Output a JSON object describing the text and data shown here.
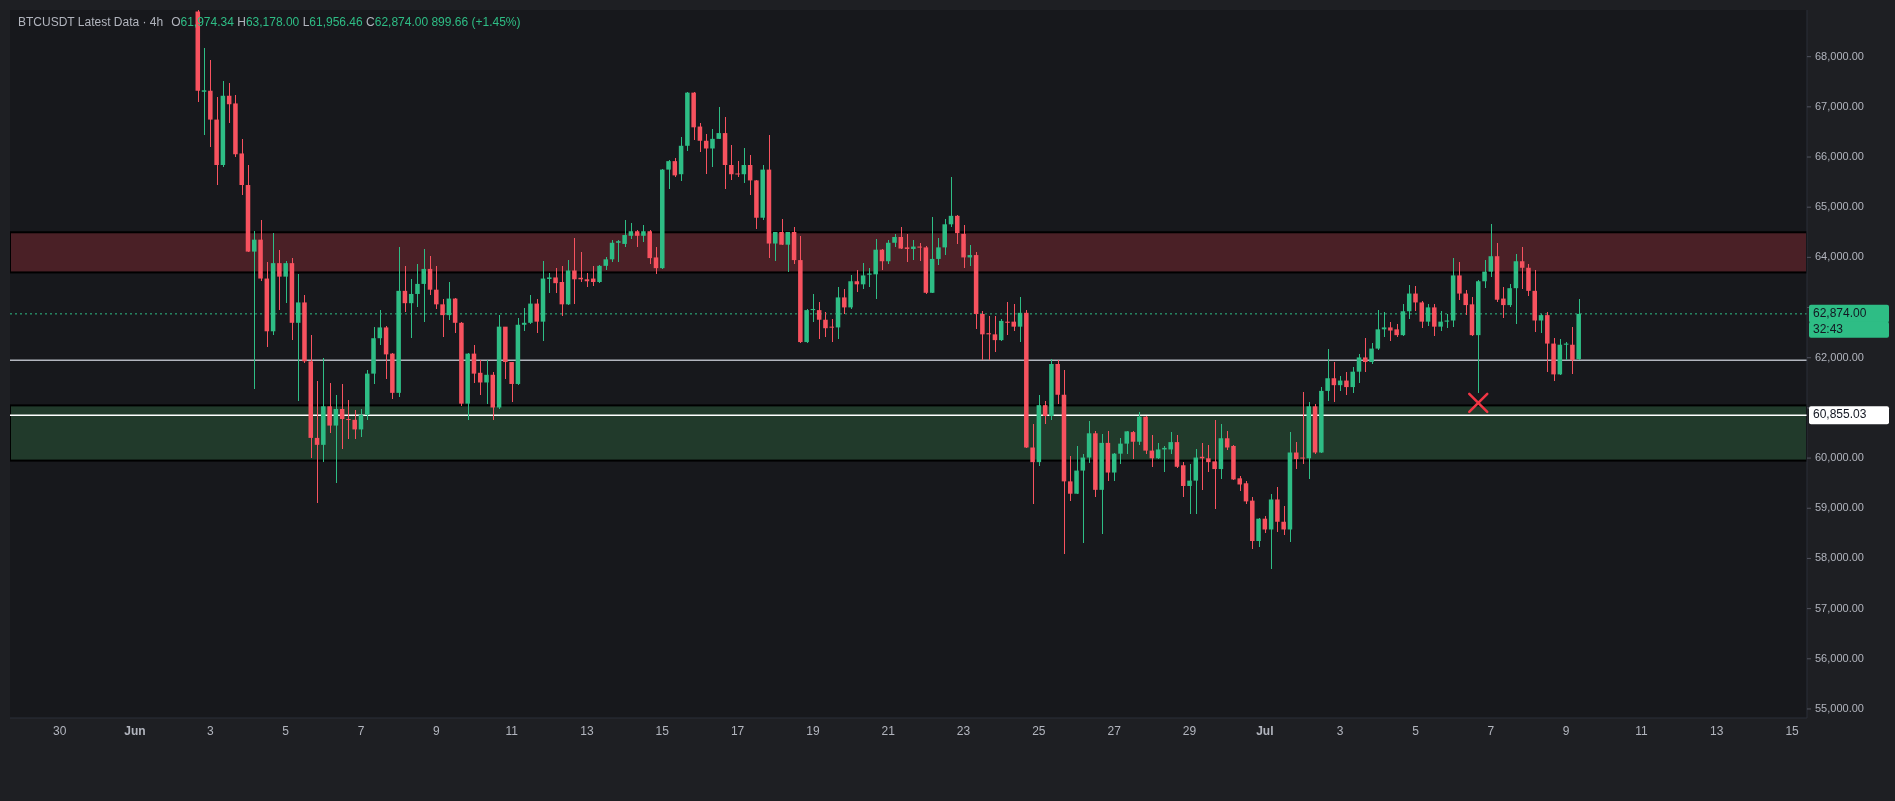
{
  "chart_data": {
    "type": "candlestick",
    "title": "BTCUSDT Latest Data · 4h",
    "subtitle": "O61,974.34 H63,178.00 L61,956.46 C62,874.00 899.66 (+1.45%)",
    "x": [
      "--06-02T16:00",
      "--06-02T20:00",
      "--06-03T00:00",
      "--06-03T04:00",
      "--06-03T08:00",
      "--06-03T12:00",
      "--06-03T16:00",
      "--06-03T20:00",
      "--06-04T00:00",
      "--06-04T04:00",
      "--06-04T08:00",
      "--06-04T12:00",
      "--06-04T16:00",
      "--06-04T20:00",
      "--06-05T00:00",
      "--06-05T04:00",
      "--06-05T08:00",
      "--06-05T12:00",
      "--06-05T16:00",
      "--06-05T20:00",
      "--06-06T00:00",
      "--06-06T04:00",
      "--06-06T08:00",
      "--06-06T12:00",
      "--06-06T16:00",
      "--06-06T20:00",
      "--06-07T00:00",
      "--06-07T04:00",
      "--06-07T08:00",
      "--06-07T12:00",
      "--06-07T16:00",
      "--06-07T20:00",
      "--06-08T00:00",
      "--06-08T04:00",
      "--06-08T08:00",
      "--06-08T12:00",
      "--06-08T16:00",
      "--06-08T20:00",
      "--06-09T00:00",
      "--06-09T04:00",
      "--06-09T08:00",
      "--06-09T12:00",
      "--06-09T16:00",
      "--06-09T20:00",
      "--06-10T00:00",
      "--06-10T04:00",
      "--06-10T08:00",
      "--06-10T12:00",
      "--06-10T16:00",
      "--06-10T20:00",
      "--06-11T00:00",
      "--06-11T04:00",
      "--06-11T08:00",
      "--06-11T12:00",
      "--06-11T16:00",
      "--06-11T20:00",
      "--06-12T00:00",
      "--06-12T04:00",
      "--06-12T08:00",
      "--06-12T12:00",
      "--06-12T16:00",
      "--06-12T20:00",
      "--06-13T00:00",
      "--06-13T04:00",
      "--06-13T08:00",
      "--06-13T12:00",
      "--06-13T16:00",
      "--06-13T20:00",
      "--06-14T00:00",
      "--06-14T04:00",
      "--06-14T08:00",
      "--06-14T12:00",
      "--06-14T16:00",
      "--06-14T20:00",
      "--06-15T00:00",
      "--06-15T04:00",
      "--06-15T08:00",
      "--06-15T12:00",
      "--06-15T16:00",
      "--06-15T20:00",
      "--06-16T00:00",
      "--06-16T04:00",
      "--06-16T08:00",
      "--06-16T12:00",
      "--06-16T16:00",
      "--06-16T20:00",
      "--06-17T00:00",
      "--06-17T04:00",
      "--06-17T08:00",
      "--06-17T12:00",
      "--06-17T16:00",
      "--06-17T20:00",
      "--06-18T00:00",
      "--06-18T04:00",
      "--06-18T08:00",
      "--06-18T12:00",
      "--06-18T16:00",
      "--06-18T20:00",
      "--06-19T00:00",
      "--06-19T04:00",
      "--06-19T08:00",
      "--06-19T12:00",
      "--06-19T16:00",
      "--06-19T20:00",
      "--06-20T00:00",
      "--06-20T04:00",
      "--06-20T08:00",
      "--06-20T12:00",
      "--06-20T16:00",
      "--06-20T20:00",
      "--06-21T00:00",
      "--06-21T04:00",
      "--06-21T08:00",
      "--06-21T12:00",
      "--06-21T16:00",
      "--06-21T20:00",
      "--06-22T00:00",
      "--06-22T04:00",
      "--06-22T08:00",
      "--06-22T12:00",
      "--06-22T16:00",
      "--06-22T20:00",
      "--06-23T00:00",
      "--06-23T04:00",
      "--06-23T08:00",
      "--06-23T12:00",
      "--06-23T16:00",
      "--06-23T20:00",
      "--06-24T00:00",
      "--06-24T04:00",
      "--06-24T08:00",
      "--06-24T12:00",
      "--06-24T16:00",
      "--06-24T20:00",
      "--06-25T00:00",
      "--06-25T04:00",
      "--06-25T08:00",
      "--06-25T12:00",
      "--06-25T16:00",
      "--06-25T20:00",
      "--06-26T00:00",
      "--06-26T04:00",
      "--06-26T08:00",
      "--06-26T12:00",
      "--06-26T16:00",
      "--06-26T20:00",
      "--06-27T00:00",
      "--06-27T04:00",
      "--06-27T08:00",
      "--06-27T12:00",
      "--06-27T16:00",
      "--06-27T20:00",
      "--06-28T00:00",
      "--06-28T04:00",
      "--06-28T08:00",
      "--06-28T12:00",
      "--06-28T16:00",
      "--06-28T20:00",
      "--06-29T00:00",
      "--06-29T04:00",
      "--06-29T08:00",
      "--06-29T12:00",
      "--06-29T16:00",
      "--06-29T20:00",
      "--06-30T00:00",
      "--06-30T04:00",
      "--06-30T08:00",
      "--06-30T12:00",
      "--06-30T16:00",
      "--06-30T20:00",
      "--07-01T00:00",
      "--07-01T04:00",
      "--07-01T08:00",
      "--07-01T12:00",
      "--07-01T16:00",
      "--07-01T20:00",
      "--07-02T00:00",
      "--07-02T04:00",
      "--07-02T08:00",
      "--07-02T12:00",
      "--07-02T16:00",
      "--07-02T20:00",
      "--07-03T00:00",
      "--07-03T04:00",
      "--07-03T08:00",
      "--07-03T12:00",
      "--07-03T16:00",
      "--07-03T20:00",
      "--07-04T00:00",
      "--07-04T04:00",
      "--07-04T08:00",
      "--07-04T12:00",
      "--07-04T16:00",
      "--07-04T20:00",
      "--07-05T00:00",
      "--07-05T04:00",
      "--07-05T08:00",
      "--07-05T12:00",
      "--07-05T16:00",
      "--07-05T20:00",
      "--07-06T00:00",
      "--07-06T04:00",
      "--07-06T08:00",
      "--07-06T12:00",
      "--07-06T16:00",
      "--07-06T20:00",
      "--07-07T00:00",
      "--07-07T04:00",
      "--07-07T08:00",
      "--07-07T12:00",
      "--07-07T16:00",
      "--07-07T20:00",
      "--07-08T00:00",
      "--07-08T04:00",
      "--07-08T08:00",
      "--07-08T12:00",
      "--07-08T16:00",
      "--07-08T20:00",
      "--07-09T00:00",
      "--07-09T04:00",
      "--07-09T08:00"
    ],
    "ohlc": [
      [
        68900,
        68950,
        67091,
        67321
      ],
      [
        67300,
        68165,
        66439,
        67330
      ],
      [
        67321,
        67934,
        66209,
        66746
      ],
      [
        66746,
        67206,
        65442,
        65841
      ],
      [
        65841,
        67513,
        65800,
        67221
      ],
      [
        67221,
        67474,
        66669,
        67052
      ],
      [
        67068,
        67244,
        66000,
        66055
      ],
      [
        66071,
        66362,
        65250,
        65442
      ],
      [
        65442,
        65841,
        64100,
        64115
      ],
      [
        64115,
        64521,
        61377,
        64353
      ],
      [
        64353,
        64751,
        63524,
        63578
      ],
      [
        63578,
        63908,
        62205,
        62527
      ],
      [
        62527,
        64483,
        62450,
        63885
      ],
      [
        63885,
        64138,
        62949,
        63616
      ],
      [
        63616,
        63923,
        63100,
        63885
      ],
      [
        63885,
        63985,
        62350,
        62696
      ],
      [
        62696,
        63678,
        61131,
        63102
      ],
      [
        63102,
        63256,
        61900,
        61929
      ],
      [
        61929,
        62450,
        59996,
        60402
      ],
      [
        60402,
        61530,
        59114,
        60264
      ],
      [
        60264,
        61990,
        59919,
        61032
      ],
      [
        61032,
        61492,
        60494,
        60648
      ],
      [
        60648,
        61262,
        59498,
        60978
      ],
      [
        60978,
        61469,
        60188,
        60778
      ],
      [
        60778,
        61162,
        60380,
        60763
      ],
      [
        60763,
        60955,
        60380,
        60571
      ],
      [
        60571,
        60978,
        60418,
        60863
      ],
      [
        60863,
        61760,
        60763,
        61683
      ],
      [
        61683,
        62604,
        61477,
        62389
      ],
      [
        62389,
        62949,
        62259,
        62604
      ],
      [
        62604,
        62642,
        61569,
        62067
      ],
      [
        62082,
        62100,
        61185,
        61300
      ],
      [
        61300,
        64215,
        61223,
        63333
      ],
      [
        63333,
        63831,
        62911,
        63087
      ],
      [
        63087,
        63563,
        62389,
        63271
      ],
      [
        63271,
        63869,
        63003,
        63471
      ],
      [
        63471,
        64176,
        62719,
        63770
      ],
      [
        63770,
        64023,
        63256,
        63356
      ],
      [
        63356,
        63831,
        62972,
        63064
      ],
      [
        63064,
        63179,
        62412,
        62849
      ],
      [
        62849,
        63509,
        62757,
        63179
      ],
      [
        63179,
        63200,
        62489,
        62696
      ],
      [
        62696,
        62720,
        61031,
        61085
      ],
      [
        61085,
        62100,
        60763,
        62082
      ],
      [
        62082,
        62259,
        61500,
        61683
      ],
      [
        61700,
        61952,
        61262,
        61507
      ],
      [
        61507,
        61952,
        61085,
        61660
      ],
      [
        61660,
        61722,
        60763,
        61008
      ],
      [
        61008,
        62849,
        60978,
        62619
      ],
      [
        62619,
        62620,
        61569,
        61914
      ],
      [
        61914,
        61920,
        61108,
        61477
      ],
      [
        61477,
        62796,
        61450,
        62657
      ],
      [
        62657,
        62987,
        62542,
        62696
      ],
      [
        62696,
        63256,
        62680,
        63079
      ],
      [
        63079,
        63179,
        62489,
        62719
      ],
      [
        62719,
        63923,
        62335,
        63578
      ],
      [
        63570,
        63693,
        63294,
        63600
      ],
      [
        63600,
        63793,
        63294,
        63486
      ],
      [
        63509,
        63831,
        62834,
        63064
      ],
      [
        63064,
        63938,
        63041,
        63739
      ],
      [
        63739,
        64383,
        63064,
        63563
      ],
      [
        63593,
        64100,
        63509,
        63563
      ],
      [
        63563,
        63693,
        63409,
        63524
      ],
      [
        63578,
        63831,
        63432,
        63509
      ],
      [
        63509,
        63846,
        63486,
        63831
      ],
      [
        63831,
        63999,
        63739,
        63961
      ],
      [
        63961,
        64353,
        63908,
        64291
      ],
      [
        64291,
        64353,
        63908,
        64322
      ],
      [
        64268,
        64751,
        64215,
        64445
      ],
      [
        64430,
        64690,
        64368,
        64521
      ],
      [
        64521,
        64552,
        64215,
        64430
      ],
      [
        64430,
        64637,
        64307,
        64521
      ],
      [
        64521,
        64537,
        63869,
        63985
      ],
      [
        63999,
        64200,
        63678,
        63785
      ],
      [
        63785,
        65760,
        63770,
        65749
      ],
      [
        65749,
        65940,
        65365,
        65918
      ],
      [
        65918,
        65979,
        65595,
        65634
      ],
      [
        65657,
        66400,
        65518,
        66224
      ],
      [
        66224,
        67298,
        66117,
        67283
      ],
      [
        67283,
        67298,
        66347,
        66592
      ],
      [
        66607,
        66669,
        66094,
        66324
      ],
      [
        66324,
        66454,
        65657,
        66170
      ],
      [
        66170,
        66554,
        65810,
        66362
      ],
      [
        66362,
        66991,
        66350,
        66477
      ],
      [
        66477,
        66807,
        65365,
        65841
      ],
      [
        65841,
        66247,
        65534,
        65657
      ],
      [
        65672,
        65917,
        65595,
        65657
      ],
      [
        65657,
        66170,
        65480,
        65841
      ],
      [
        65841,
        66040,
        65250,
        65534
      ],
      [
        65534,
        65540,
        64560,
        64790
      ],
      [
        64790,
        65841,
        64752,
        65749
      ],
      [
        65749,
        66439,
        63984,
        64276
      ],
      [
        64276,
        64510,
        63923,
        64506
      ],
      [
        64506,
        64774,
        64240,
        64253
      ],
      [
        64253,
        64510,
        63708,
        64506
      ],
      [
        64506,
        64613,
        63869,
        63946
      ],
      [
        63946,
        64429,
        62300,
        62312
      ],
      [
        62312,
        62972,
        62297,
        62949
      ],
      [
        62949,
        63271,
        62719,
        62972
      ],
      [
        62949,
        63102,
        62374,
        62757
      ],
      [
        62757,
        62911,
        62412,
        62588
      ],
      [
        62619,
        62773,
        62312,
        62604
      ],
      [
        62604,
        63409,
        62374,
        63202
      ],
      [
        63202,
        63371,
        62872,
        63003
      ],
      [
        63003,
        63640,
        62972,
        63524
      ],
      [
        63524,
        63754,
        63309,
        63463
      ],
      [
        63463,
        63892,
        63371,
        63640
      ],
      [
        63655,
        63793,
        63409,
        63678
      ],
      [
        63662,
        64368,
        63179,
        64153
      ],
      [
        64153,
        64176,
        63754,
        63923
      ],
      [
        63923,
        64353,
        63869,
        64291
      ],
      [
        64291,
        64460,
        64199,
        64406
      ],
      [
        64406,
        64598,
        64170,
        64176
      ],
      [
        64199,
        64460,
        63908,
        64168
      ],
      [
        64168,
        64353,
        63946,
        64215
      ],
      [
        64215,
        64291,
        63923,
        64199
      ],
      [
        64199,
        64230,
        63279,
        63294
      ],
      [
        63294,
        64813,
        63290,
        63969
      ],
      [
        63969,
        64383,
        63846,
        64199
      ],
      [
        64199,
        64767,
        64046,
        64659
      ],
      [
        64659,
        65610,
        64598,
        64828
      ],
      [
        64828,
        64843,
        64276,
        64483
      ],
      [
        64468,
        64636,
        63793,
        63999
      ],
      [
        63999,
        64253,
        63831,
        64046
      ],
      [
        64046,
        64100,
        62566,
        62872
      ],
      [
        62872,
        62926,
        61952,
        62466
      ],
      [
        62489,
        62834,
        61952,
        62466
      ],
      [
        62466,
        62834,
        62105,
        62351
      ],
      [
        62351,
        62773,
        62335,
        62734
      ],
      [
        62719,
        63102,
        62450,
        62696
      ],
      [
        62719,
        63064,
        62527,
        62619
      ],
      [
        62619,
        63217,
        62312,
        62895
      ],
      [
        62895,
        62949,
        60200,
        60211
      ],
      [
        60211,
        60671,
        59091,
        59919
      ],
      [
        59919,
        61262,
        59843,
        61054
      ],
      [
        61054,
        61147,
        60671,
        60840
      ],
      [
        60840,
        61967,
        60763,
        61875
      ],
      [
        61875,
        61952,
        61070,
        61262
      ],
      [
        61262,
        61760,
        58079,
        59536
      ],
      [
        59536,
        60034,
        59137,
        59290
      ],
      [
        59290,
        60242,
        59280,
        59751
      ],
      [
        59751,
        60088,
        58309,
        60011
      ],
      [
        60011,
        60740,
        59904,
        60494
      ],
      [
        60494,
        60548,
        59229,
        59367
      ],
      [
        59367,
        60472,
        58485,
        60303
      ],
      [
        60303,
        60548,
        59536,
        59712
      ],
      [
        59712,
        60111,
        59551,
        60088
      ],
      [
        60088,
        60395,
        59881,
        60288
      ],
      [
        60288,
        60548,
        60073,
        60533
      ],
      [
        60518,
        60533,
        59988,
        60326
      ],
      [
        60326,
        60916,
        60265,
        60824
      ],
      [
        60824,
        60840,
        60073,
        60149
      ],
      [
        60149,
        60456,
        59827,
        59996
      ],
      [
        59996,
        60303,
        59981,
        60172
      ],
      [
        60172,
        60242,
        59727,
        60203
      ],
      [
        60172,
        60518,
        60073,
        60318
      ],
      [
        60318,
        60456,
        59804,
        59827
      ],
      [
        59857,
        59919,
        59229,
        59444
      ],
      [
        59444,
        59881,
        58884,
        59551
      ],
      [
        59551,
        60188,
        58884,
        60011
      ],
      [
        60026,
        60303,
        59367,
        59996
      ],
      [
        59996,
        60265,
        59727,
        59919
      ],
      [
        59934,
        60763,
        58984,
        59781
      ],
      [
        59781,
        60671,
        59574,
        60395
      ],
      [
        60395,
        60548,
        60165,
        60211
      ],
      [
        60242,
        60265,
        59570,
        59574
      ],
      [
        59597,
        59651,
        59344,
        59474
      ],
      [
        59498,
        59536,
        59091,
        59137
      ],
      [
        59152,
        59229,
        58194,
        58347
      ],
      [
        58347,
        58808,
        58232,
        58792
      ],
      [
        58792,
        58846,
        58500,
        58577
      ],
      [
        58577,
        59290,
        57787,
        59175
      ],
      [
        59175,
        59421,
        58524,
        58731
      ],
      [
        58731,
        59053,
        58477,
        58577
      ],
      [
        58577,
        60518,
        58324,
        60111
      ],
      [
        60111,
        60318,
        59781,
        59981
      ],
      [
        60011,
        61315,
        59881,
        59996
      ],
      [
        59996,
        61108,
        59574,
        61031
      ],
      [
        61031,
        61070,
        60088,
        60111
      ],
      [
        60111,
        61415,
        60100,
        61339
      ],
      [
        61339,
        62182,
        61131,
        61591
      ],
      [
        61591,
        61914,
        61108,
        61453
      ],
      [
        61453,
        61645,
        61339,
        61545
      ],
      [
        61545,
        61722,
        61262,
        61415
      ],
      [
        61415,
        61822,
        61300,
        61722
      ],
      [
        61722,
        62082,
        61492,
        62006
      ],
      [
        62006,
        62389,
        61722,
        61914
      ],
      [
        61914,
        62297,
        61875,
        62182
      ],
      [
        62182,
        62949,
        62159,
        62566
      ],
      [
        62566,
        62911,
        62412,
        62604
      ],
      [
        62604,
        62719,
        62335,
        62542
      ],
      [
        62566,
        62665,
        62412,
        62450
      ],
      [
        62450,
        63064,
        62435,
        62926
      ],
      [
        62926,
        63448,
        62773,
        63279
      ],
      [
        63279,
        63432,
        62926,
        63102
      ],
      [
        63102,
        63125,
        62588,
        62719
      ],
      [
        62719,
        63064,
        62642,
        63003
      ],
      [
        63003,
        63064,
        62435,
        62619
      ],
      [
        62619,
        62926,
        62542,
        62719
      ],
      [
        62719,
        62872,
        62588,
        62742
      ],
      [
        62742,
        63985,
        62604,
        63640
      ],
      [
        63640,
        63908,
        63141,
        63279
      ],
      [
        63279,
        63356,
        62849,
        63049
      ],
      [
        63064,
        63217,
        62435,
        62450
      ],
      [
        62450,
        63540,
        61300,
        63524
      ],
      [
        63524,
        63946,
        63386,
        63716
      ],
      [
        63716,
        64675,
        63601,
        64023
      ],
      [
        64023,
        64291,
        63102,
        63156
      ],
      [
        63179,
        63409,
        62796,
        63049
      ],
      [
        63049,
        63463,
        63003,
        63386
      ],
      [
        63386,
        64077,
        62680,
        63923
      ],
      [
        63923,
        64215,
        63371,
        63793
      ],
      [
        63793,
        63869,
        63233,
        63333
      ],
      [
        63333,
        63739,
        62512,
        62742
      ],
      [
        62742,
        62872,
        62489,
        62849
      ],
      [
        62849,
        62911,
        61722,
        62282
      ],
      [
        62282,
        62389,
        61546,
        61668
      ],
      [
        61668,
        62374,
        61660,
        62259
      ],
      [
        62259,
        62312,
        61952,
        62282
      ],
      [
        62259,
        62619,
        61684,
        61952
      ],
      [
        61974.34,
        63178,
        61956.46,
        62874
      ]
    ],
    "series": [
      {
        "type": "scatter",
        "marker": "cross",
        "color": "#f23645",
        "x": [
          "--07-06T16:00"
        ],
        "values": [
          61100
        ]
      }
    ],
    "xlim": [
      "--05-28T16:20",
      "--07-15T09:30"
    ],
    "xticks": [
      {
        "value": "--05-30",
        "label": "30"
      },
      {
        "value": "--06-01",
        "label": "Jun"
      },
      {
        "value": "--06-03",
        "label": "3"
      },
      {
        "value": "--06-05",
        "label": "5"
      },
      {
        "value": "--06-07",
        "label": "7"
      },
      {
        "value": "--06-09",
        "label": "9"
      },
      {
        "value": "--06-11",
        "label": "11"
      },
      {
        "value": "--06-13",
        "label": "13"
      },
      {
        "value": "--06-15",
        "label": "15"
      },
      {
        "value": "--06-17",
        "label": "17"
      },
      {
        "value": "--06-19",
        "label": "19"
      },
      {
        "value": "--06-21",
        "label": "21"
      },
      {
        "value": "--06-23",
        "label": "23"
      },
      {
        "value": "--06-25",
        "label": "25"
      },
      {
        "value": "--06-27",
        "label": "27"
      },
      {
        "value": "--06-29",
        "label": "29"
      },
      {
        "value": "--07-01",
        "label": "Jul"
      },
      {
        "value": "--07-03",
        "label": "3"
      },
      {
        "value": "--07-05",
        "label": "5"
      },
      {
        "value": "--07-07",
        "label": "7"
      },
      {
        "value": "--07-09",
        "label": "9"
      },
      {
        "value": "--07-11",
        "label": "11"
      },
      {
        "value": "--07-13",
        "label": "13"
      },
      {
        "value": "--07-15",
        "label": "15"
      }
    ],
    "ylim": [
      54820,
      68930
    ],
    "yticks": [
      {
        "value": 55000,
        "label": "55,000.00"
      },
      {
        "value": 56000,
        "label": "56,000.00"
      },
      {
        "value": 57000,
        "label": "57,000.00"
      },
      {
        "value": 58000,
        "label": "58,000.00"
      },
      {
        "value": 59000,
        "label": "59,000.00"
      },
      {
        "value": 60000,
        "label": "60,000.00"
      },
      {
        "value": 61000,
        "label": null
      },
      {
        "value": 62000,
        "label": "62,000.00"
      },
      {
        "value": 63000,
        "label": null
      },
      {
        "value": 64000,
        "label": "64,000.00"
      },
      {
        "value": 65000,
        "label": "65,000.00"
      },
      {
        "value": 66000,
        "label": "66,000.00"
      },
      {
        "value": 67000,
        "label": "67,000.00"
      },
      {
        "value": 68000,
        "label": "68,000.00"
      }
    ],
    "bands": [
      {
        "axis": "y",
        "from": 63700,
        "to": 64500,
        "color": "#4a2026"
      },
      {
        "axis": "y",
        "from": 59950,
        "to": 61050,
        "color": "#213a2b"
      }
    ],
    "ref_lines": [
      {
        "axis": "y",
        "value": 62874,
        "label": "62,874.00",
        "color": "#2ebd85",
        "line_style": "dotted"
      },
      {
        "axis": "y",
        "value": 61950,
        "color": "#b2b5be",
        "line_style": "solid"
      },
      {
        "axis": "y",
        "value": 60855.03,
        "label": "60,855.03",
        "color": "#ffffff",
        "line_style": "solid"
      }
    ],
    "annotations": [
      "32:43"
    ]
  }
}
